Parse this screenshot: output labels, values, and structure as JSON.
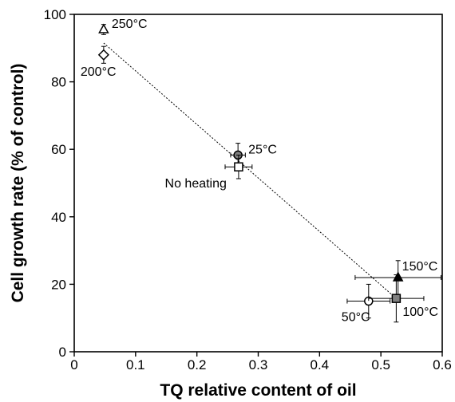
{
  "chart_data": {
    "type": "scatter",
    "xlabel": "TQ relative content of oil",
    "ylabel": "Cell growth rate (% of control)",
    "xlim": [
      0,
      0.6
    ],
    "ylim": [
      0,
      100
    ],
    "x_ticks": [
      "0",
      "0.1",
      "0.2",
      "0.3",
      "0.4",
      "0.5",
      "0.6"
    ],
    "y_ticks": [
      "0",
      "20",
      "40",
      "60",
      "80",
      "100"
    ],
    "grid": false,
    "points": [
      {
        "label": "250°C",
        "x": 0.048,
        "y": 95.5,
        "x_err": 0,
        "y_err": 1.5,
        "marker": "triangle",
        "fill": "#ffffff"
      },
      {
        "label": "200°C",
        "x": 0.048,
        "y": 88.0,
        "x_err": 0,
        "y_err": 2.5,
        "marker": "diamond",
        "fill": "#ffffff"
      },
      {
        "label": "25°C",
        "x": 0.267,
        "y": 58.3,
        "x_err": 0.012,
        "y_err": 3.5,
        "marker": "circle",
        "fill": "#808080"
      },
      {
        "label": "No heating",
        "x": 0.268,
        "y": 54.8,
        "x_err": 0.022,
        "y_err": 3.5,
        "marker": "square",
        "fill": "#ffffff"
      },
      {
        "label": "150°C",
        "x": 0.528,
        "y": 22.0,
        "x_err": 0.07,
        "y_err": 5.0,
        "marker": "triangle",
        "fill": "#000000"
      },
      {
        "label": "50°C",
        "x": 0.48,
        "y": 15.0,
        "x_err": 0.035,
        "y_err": 5.0,
        "marker": "circle",
        "fill": "#ffffff"
      },
      {
        "label": "100°C",
        "x": 0.525,
        "y": 15.8,
        "x_err": 0.045,
        "y_err": 7.0,
        "marker": "square",
        "fill": "#808080"
      }
    ],
    "trendline": {
      "style": "dotted",
      "x": [
        0.048,
        0.525
      ],
      "y": [
        91.5,
        15.8
      ]
    }
  }
}
